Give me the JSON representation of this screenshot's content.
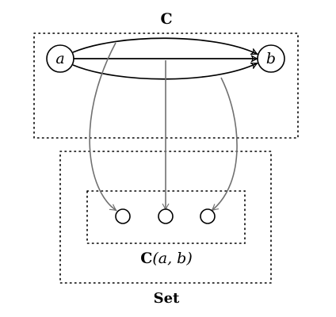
{
  "category_label": "C",
  "set_label": "Set",
  "hom_label": {
    "prefix": "C",
    "args": "(a, b)"
  },
  "objects": {
    "a": "a",
    "b": "b"
  },
  "morphism_count": 3,
  "element_count": 3,
  "colors": {
    "stroke": "#000000",
    "mapping": "#707070",
    "background": "#ffffff"
  }
}
